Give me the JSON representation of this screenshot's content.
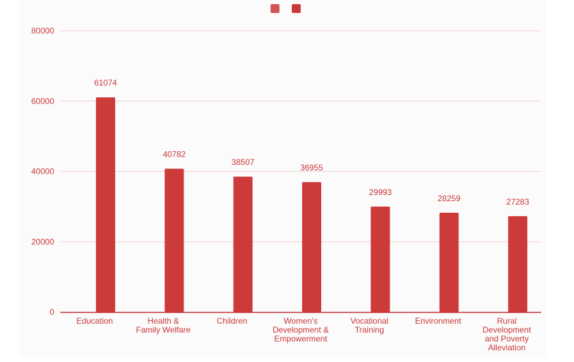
{
  "chart_data": {
    "type": "bar",
    "categories": [
      "Education",
      "Health & Family Welfare",
      "Children",
      "Women's Development & Empowerment",
      "Vocational Training",
      "Environment",
      "Rural Development and Poverty Alleviation"
    ],
    "category_lines": [
      [
        "Education"
      ],
      [
        "Health &",
        "Family Welfare"
      ],
      [
        "Children"
      ],
      [
        "Women's",
        "Development &",
        "Empowerment"
      ],
      [
        "Vocational",
        "Training"
      ],
      [
        "Environment"
      ],
      [
        "Rural",
        "Development",
        "and Poverty",
        "Alleviation"
      ]
    ],
    "series": [
      {
        "values": [
          null,
          null,
          null,
          null,
          null,
          null,
          null
        ]
      },
      {
        "values": [
          61074,
          40782,
          38507,
          36955,
          29993,
          28259,
          27283
        ]
      }
    ],
    "data_labels": [
      "61074",
      "40782",
      "38507",
      "36955",
      "29993",
      "28259",
      "27283"
    ],
    "y_ticks": [
      0,
      20000,
      40000,
      60000,
      80000
    ],
    "ylim": [
      0,
      80000
    ],
    "title": "",
    "xlabel": "",
    "ylabel": "",
    "grid": true,
    "legend": {
      "position": "top-center",
      "swatches": [
        "#d45455",
        "#c9383a"
      ]
    },
    "colors": {
      "bar": "#cc3a3a",
      "axis": "#c0282a",
      "grid": "#f1cfcf",
      "text": "#c9383a"
    }
  }
}
